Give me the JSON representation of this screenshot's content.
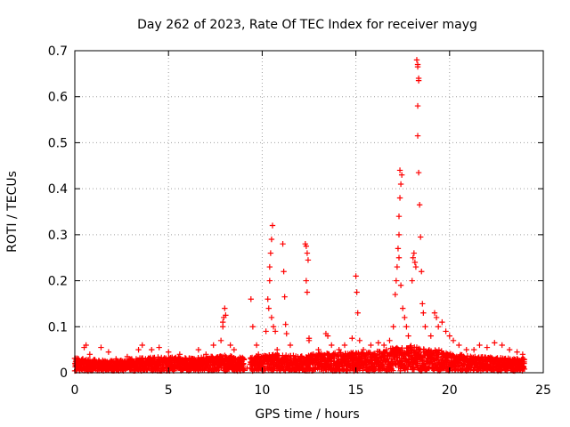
{
  "chart_data": {
    "type": "scatter",
    "title": "Day 262 of 2023, Rate Of TEC Index for receiver mayg",
    "xlabel": "GPS time / hours",
    "ylabel": "ROTI / TECUs",
    "xlim": [
      0,
      25
    ],
    "ylim": [
      0,
      0.7
    ],
    "xticks": [
      0,
      5,
      10,
      15,
      20,
      25
    ],
    "yticks": [
      0,
      0.1,
      0.2,
      0.3,
      0.4,
      0.5,
      0.6,
      0.7
    ],
    "xtick_labels": [
      "0",
      "5",
      "10",
      "15",
      "20",
      "25"
    ],
    "ytick_labels": [
      "0",
      "0.1",
      "0.2",
      "0.3",
      "0.4",
      "0.5",
      "0.6",
      "0.7"
    ],
    "grid": true,
    "marker": "plus",
    "color": "#ff0000",
    "series": [
      {
        "name": "ROTI",
        "points": [
          [
            0.2,
            0.03
          ],
          [
            0.3,
            0.02
          ],
          [
            0.5,
            0.055
          ],
          [
            0.6,
            0.06
          ],
          [
            0.8,
            0.04
          ],
          [
            1.4,
            0.055
          ],
          [
            1.8,
            0.045
          ],
          [
            2.2,
            0.03
          ],
          [
            2.8,
            0.035
          ],
          [
            3.4,
            0.05
          ],
          [
            3.6,
            0.06
          ],
          [
            4.1,
            0.05
          ],
          [
            4.5,
            0.055
          ],
          [
            5.0,
            0.045
          ],
          [
            5.6,
            0.04
          ],
          [
            6.3,
            0.03
          ],
          [
            6.6,
            0.05
          ],
          [
            7.0,
            0.04
          ],
          [
            7.4,
            0.06
          ],
          [
            7.8,
            0.07
          ],
          [
            7.9,
            0.1
          ],
          [
            7.95,
            0.12
          ],
          [
            8.0,
            0.14
          ],
          [
            7.9,
            0.11
          ],
          [
            8.05,
            0.125
          ],
          [
            8.3,
            0.06
          ],
          [
            8.5,
            0.05
          ],
          [
            8.9,
            0.03
          ],
          [
            9.0,
            0.02
          ],
          [
            9.2,
            0.01
          ],
          [
            9.4,
            0.16
          ],
          [
            9.5,
            0.1
          ],
          [
            9.7,
            0.06
          ],
          [
            9.8,
            0.04
          ],
          [
            10.2,
            0.09
          ],
          [
            10.3,
            0.16
          ],
          [
            10.35,
            0.14
          ],
          [
            10.4,
            0.23
          ],
          [
            10.45,
            0.26
          ],
          [
            10.5,
            0.29
          ],
          [
            10.55,
            0.32
          ],
          [
            10.4,
            0.2
          ],
          [
            10.5,
            0.12
          ],
          [
            10.6,
            0.1
          ],
          [
            10.7,
            0.09
          ],
          [
            10.8,
            0.05
          ],
          [
            11.1,
            0.28
          ],
          [
            11.15,
            0.22
          ],
          [
            11.2,
            0.165
          ],
          [
            11.25,
            0.105
          ],
          [
            11.3,
            0.085
          ],
          [
            11.5,
            0.06
          ],
          [
            12.3,
            0.28
          ],
          [
            12.35,
            0.275
          ],
          [
            12.4,
            0.26
          ],
          [
            12.45,
            0.245
          ],
          [
            12.35,
            0.2
          ],
          [
            12.4,
            0.175
          ],
          [
            12.5,
            0.075
          ],
          [
            12.5,
            0.07
          ],
          [
            13.0,
            0.05
          ],
          [
            13.4,
            0.085
          ],
          [
            13.5,
            0.08
          ],
          [
            13.7,
            0.06
          ],
          [
            14.1,
            0.05
          ],
          [
            14.4,
            0.06
          ],
          [
            14.8,
            0.075
          ],
          [
            15.0,
            0.21
          ],
          [
            15.05,
            0.175
          ],
          [
            15.1,
            0.13
          ],
          [
            15.2,
            0.07
          ],
          [
            15.4,
            0.05
          ],
          [
            15.8,
            0.06
          ],
          [
            16.2,
            0.065
          ],
          [
            16.5,
            0.06
          ],
          [
            16.8,
            0.07
          ],
          [
            17.0,
            0.1
          ],
          [
            17.1,
            0.17
          ],
          [
            17.15,
            0.2
          ],
          [
            17.2,
            0.23
          ],
          [
            17.25,
            0.27
          ],
          [
            17.3,
            0.3
          ],
          [
            17.3,
            0.34
          ],
          [
            17.35,
            0.38
          ],
          [
            17.4,
            0.41
          ],
          [
            17.45,
            0.43
          ],
          [
            17.35,
            0.44
          ],
          [
            17.3,
            0.25
          ],
          [
            17.4,
            0.19
          ],
          [
            17.5,
            0.14
          ],
          [
            17.6,
            0.12
          ],
          [
            17.7,
            0.1
          ],
          [
            17.8,
            0.08
          ],
          [
            18.0,
            0.2
          ],
          [
            18.05,
            0.25
          ],
          [
            18.1,
            0.26
          ],
          [
            18.15,
            0.24
          ],
          [
            18.2,
            0.23
          ],
          [
            18.25,
            0.68
          ],
          [
            18.3,
            0.67
          ],
          [
            18.3,
            0.665
          ],
          [
            18.35,
            0.64
          ],
          [
            18.35,
            0.635
          ],
          [
            18.3,
            0.58
          ],
          [
            18.3,
            0.515
          ],
          [
            18.35,
            0.435
          ],
          [
            18.4,
            0.365
          ],
          [
            18.45,
            0.295
          ],
          [
            18.5,
            0.22
          ],
          [
            18.55,
            0.15
          ],
          [
            18.6,
            0.13
          ],
          [
            18.7,
            0.1
          ],
          [
            19.0,
            0.08
          ],
          [
            19.2,
            0.13
          ],
          [
            19.3,
            0.12
          ],
          [
            19.4,
            0.1
          ],
          [
            19.6,
            0.11
          ],
          [
            19.8,
            0.09
          ],
          [
            20.0,
            0.08
          ],
          [
            20.2,
            0.07
          ],
          [
            20.5,
            0.06
          ],
          [
            20.9,
            0.05
          ],
          [
            21.3,
            0.05
          ],
          [
            21.6,
            0.06
          ],
          [
            22.0,
            0.055
          ],
          [
            22.4,
            0.065
          ],
          [
            22.8,
            0.06
          ],
          [
            23.2,
            0.05
          ],
          [
            23.6,
            0.045
          ],
          [
            23.9,
            0.04
          ]
        ]
      }
    ],
    "noise_band": [
      [
        0.0,
        0.028
      ],
      [
        1.0,
        0.025
      ],
      [
        2.0,
        0.022
      ],
      [
        3.0,
        0.026
      ],
      [
        4.0,
        0.03
      ],
      [
        5.0,
        0.03
      ],
      [
        6.0,
        0.028
      ],
      [
        7.0,
        0.03
      ],
      [
        8.0,
        0.034
      ],
      [
        9.0,
        0.03
      ],
      [
        10.0,
        0.034
      ],
      [
        11.0,
        0.036
      ],
      [
        12.0,
        0.032
      ],
      [
        13.0,
        0.038
      ],
      [
        14.0,
        0.04
      ],
      [
        15.0,
        0.04
      ],
      [
        16.0,
        0.042
      ],
      [
        17.0,
        0.05
      ],
      [
        18.0,
        0.055
      ],
      [
        19.0,
        0.05
      ],
      [
        20.0,
        0.04
      ],
      [
        21.0,
        0.032
      ],
      [
        22.0,
        0.03
      ],
      [
        23.0,
        0.028
      ],
      [
        24.0,
        0.026
      ]
    ],
    "data_gap_hours": [
      9.05,
      9.35
    ],
    "data_span_hours": [
      0,
      24
    ]
  }
}
